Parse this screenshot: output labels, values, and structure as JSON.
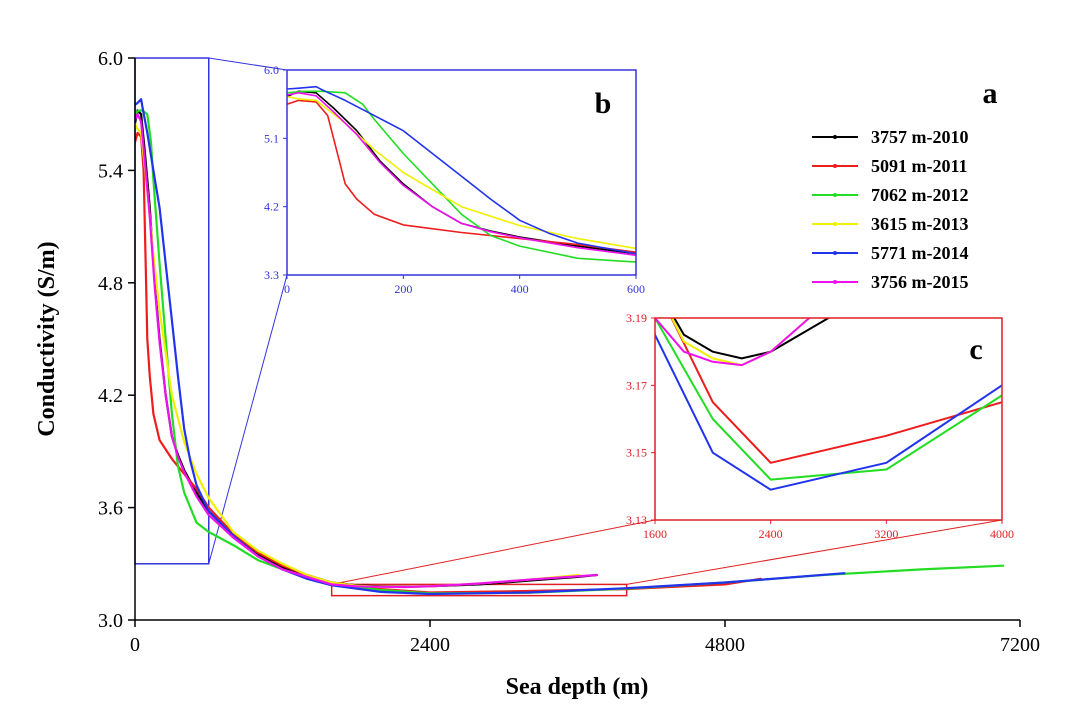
{
  "colors": {
    "axis": "#000000",
    "inset_b": "#3333dd",
    "inset_c": "#e02020",
    "s2010": "#000000",
    "s2011": "#ee1c1c",
    "s2012": "#22dd22",
    "s2013": "#f0f000",
    "s2014": "#2233ee",
    "s2015": "#ee11ee"
  },
  "panel_labels": {
    "a": "a",
    "b": "b",
    "c": "c"
  },
  "chart_data": [
    {
      "id": "a",
      "type": "line",
      "xlabel": "Sea depth (m)",
      "ylabel": "Conductivity (S/m)",
      "xlim": [
        0,
        7200
      ],
      "ylim": [
        3.0,
        6.0
      ],
      "xticks": [
        0,
        2400,
        4800,
        7200
      ],
      "yticks": [
        3.0,
        3.6,
        4.2,
        4.8,
        5.4,
        6.0
      ],
      "xtick_labels": [
        "0",
        "2400",
        "4800",
        "7200"
      ],
      "ytick_labels": [
        "3.0",
        "3.6",
        "4.2",
        "4.8",
        "5.4",
        "6.0"
      ],
      "legend_position": "top-right",
      "series": [
        {
          "name": "3757 m-2010",
          "color_key": "s2010",
          "x": [
            0,
            20,
            50,
            80,
            120,
            160,
            200,
            250,
            300,
            350,
            400,
            500,
            600,
            800,
            1000,
            1200,
            1400,
            1600,
            1800,
            2000,
            2200,
            2400,
            2800,
            3200,
            3600,
            3757
          ],
          "y": [
            5.65,
            5.72,
            5.7,
            5.5,
            5.2,
            4.8,
            4.5,
            4.2,
            3.98,
            3.88,
            3.8,
            3.68,
            3.58,
            3.45,
            3.35,
            3.28,
            3.24,
            3.2,
            3.185,
            3.18,
            3.178,
            3.18,
            3.19,
            3.21,
            3.23,
            3.24
          ]
        },
        {
          "name": "5091 m-2011",
          "color_key": "s2011",
          "x": [
            0,
            20,
            50,
            70,
            90,
            100,
            120,
            150,
            200,
            300,
            400,
            500,
            600,
            800,
            1000,
            1200,
            1400,
            1600,
            2000,
            2400,
            3200,
            4000,
            4800,
            5091
          ],
          "y": [
            5.55,
            5.6,
            5.58,
            5.4,
            4.8,
            4.5,
            4.3,
            4.1,
            3.96,
            3.86,
            3.78,
            3.7,
            3.6,
            3.46,
            3.36,
            3.29,
            3.24,
            3.2,
            3.165,
            3.147,
            3.155,
            3.165,
            3.19,
            3.22
          ]
        },
        {
          "name": "7062 m-2012",
          "color_key": "s2012",
          "x": [
            0,
            30,
            60,
            100,
            130,
            150,
            200,
            250,
            300,
            350,
            400,
            500,
            600,
            800,
            1000,
            1200,
            1400,
            1600,
            2000,
            2400,
            3200,
            4000,
            4800,
            5600,
            6400,
            7062
          ],
          "y": [
            5.7,
            5.72,
            5.72,
            5.7,
            5.55,
            5.35,
            4.9,
            4.5,
            4.1,
            3.82,
            3.68,
            3.52,
            3.47,
            3.4,
            3.32,
            3.27,
            3.23,
            3.19,
            3.16,
            3.142,
            3.145,
            3.167,
            3.2,
            3.24,
            3.27,
            3.29
          ]
        },
        {
          "name": "3615 m-2013",
          "color_key": "s2013",
          "x": [
            0,
            20,
            50,
            100,
            150,
            200,
            300,
            400,
            500,
            600,
            800,
            1000,
            1200,
            1400,
            1600,
            1800,
            2000,
            2200,
            2400,
            2800,
            3200,
            3615
          ],
          "y": [
            5.65,
            5.62,
            5.6,
            5.3,
            4.95,
            4.65,
            4.2,
            3.95,
            3.78,
            3.65,
            3.47,
            3.37,
            3.3,
            3.24,
            3.2,
            3.183,
            3.178,
            3.176,
            3.18,
            3.195,
            3.215,
            3.24
          ]
        },
        {
          "name": "5771 m-2014",
          "color_key": "s2014",
          "x": [
            0,
            20,
            50,
            60,
            100,
            150,
            200,
            250,
            300,
            350,
            400,
            450,
            500,
            600,
            800,
            1000,
            1200,
            1400,
            1600,
            2000,
            2400,
            3200,
            4000,
            4800,
            5771
          ],
          "y": [
            5.75,
            5.76,
            5.78,
            5.74,
            5.6,
            5.4,
            5.2,
            4.9,
            4.6,
            4.3,
            4.02,
            3.85,
            3.72,
            3.58,
            3.45,
            3.34,
            3.27,
            3.22,
            3.185,
            3.15,
            3.139,
            3.147,
            3.17,
            3.2,
            3.25
          ]
        },
        {
          "name": "3756 m-2015",
          "color_key": "s2015",
          "x": [
            0,
            20,
            50,
            80,
            120,
            160,
            200,
            250,
            300,
            350,
            400,
            500,
            600,
            800,
            1000,
            1200,
            1400,
            1600,
            1800,
            2000,
            2200,
            2400,
            2800,
            3200,
            3756
          ],
          "y": [
            5.67,
            5.7,
            5.66,
            5.45,
            5.15,
            4.78,
            4.48,
            4.2,
            3.98,
            3.87,
            3.79,
            3.66,
            3.56,
            3.44,
            3.34,
            3.27,
            3.23,
            3.19,
            3.18,
            3.177,
            3.176,
            3.18,
            3.195,
            3.215,
            3.24
          ]
        }
      ]
    },
    {
      "id": "b",
      "type": "line",
      "inset_of": "a",
      "xlim": [
        0,
        600
      ],
      "ylim": [
        3.3,
        6.0
      ],
      "xticks": [
        0,
        200,
        400,
        600
      ],
      "yticks": [
        3.3,
        4.2,
        5.1,
        6.0
      ],
      "xtick_labels": [
        "0",
        "200",
        "400",
        "600"
      ],
      "ytick_labels": [
        "3.3",
        "4.2",
        "5.1",
        "6.0"
      ],
      "zoom_region": {
        "x": [
          0,
          600
        ],
        "y": [
          3.3,
          6.0
        ]
      }
    },
    {
      "id": "c",
      "type": "line",
      "inset_of": "a",
      "xlim": [
        1600,
        4000
      ],
      "ylim": [
        3.13,
        3.19
      ],
      "xticks": [
        1600,
        2400,
        3200,
        4000
      ],
      "yticks": [
        3.13,
        3.15,
        3.17,
        3.19
      ],
      "xtick_labels": [
        "1600",
        "2400",
        "3200",
        "4000"
      ],
      "ytick_labels": [
        "3.13",
        "3.15",
        "3.17",
        "3.19"
      ],
      "zoom_region": {
        "x": [
          1600,
          4000
        ],
        "y": [
          3.13,
          3.19
        ]
      }
    }
  ]
}
